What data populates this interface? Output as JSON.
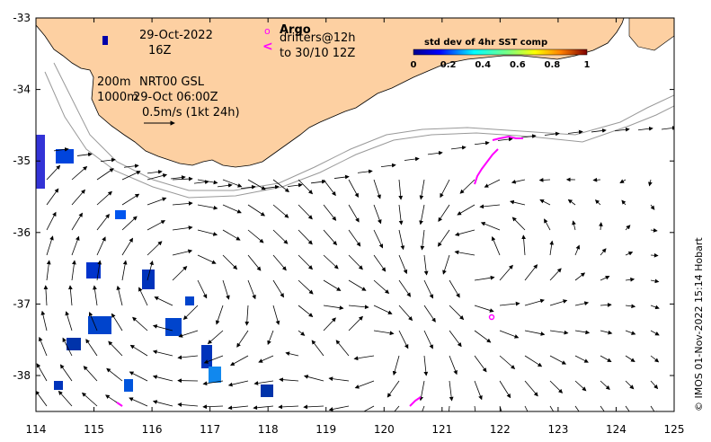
{
  "annotations": {
    "date": "29-Oct-2022",
    "hour": "16Z",
    "iso200": "200m",
    "iso1000": "1000m",
    "product": "NRT00 GSL",
    "product_time": "29-Oct 06:00Z",
    "scale": "0.5m/s (1kt 24h)",
    "argo": "Argo",
    "drifters": "drifters@12h",
    "drifters_to": "to 30/10 12Z",
    "argo_symbol": "o",
    "drifter_symbol": "<"
  },
  "colorbar": {
    "title": "std dev of 4hr SST comp",
    "ticks": [
      "0",
      "0.2",
      "0.4",
      "0.6",
      "0.8",
      "1"
    ]
  },
  "credit": "© IMOS 01-Nov-2022 15:14 Hobart",
  "axes": {
    "x_ticks": [
      "114",
      "115",
      "116",
      "117",
      "118",
      "119",
      "120",
      "121",
      "122",
      "123",
      "124",
      "125"
    ],
    "y_ticks": [
      "-33",
      "-34",
      "-35",
      "-36",
      "-37",
      "-38"
    ],
    "x_range": [
      114,
      125
    ],
    "y_range": [
      -38.5,
      -33
    ]
  },
  "colors": {
    "land": "#fdd0a2",
    "argo": "#ff00ff",
    "drifter": "#ff00ff",
    "sst_low": "#0000aa",
    "sst_mid": "#00aaff"
  }
}
